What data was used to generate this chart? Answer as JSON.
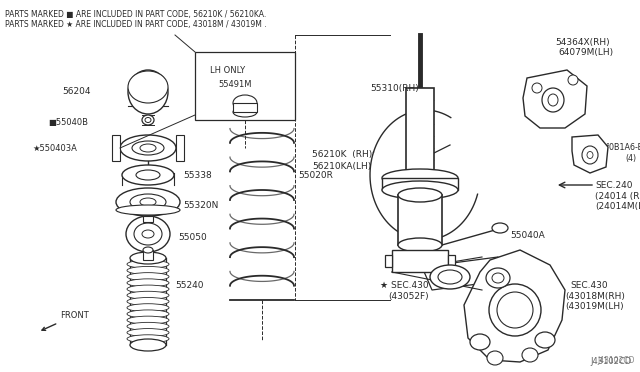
{
  "bg_color": "#ffffff",
  "line_color": "#2a2a2a",
  "text_color": "#2a2a2a",
  "fig_width": 6.4,
  "fig_height": 3.72,
  "dpi": 100,
  "header_line1": "PARTS MARKED ■ ARE INCLUDED IN PART CODE, 56210K / 56210KA.",
  "header_line2": "PARTS MARKED ★ ARE INCLUDED IN PART CODE, 43018M / 43019M .",
  "diagram_code": "J43102CD"
}
